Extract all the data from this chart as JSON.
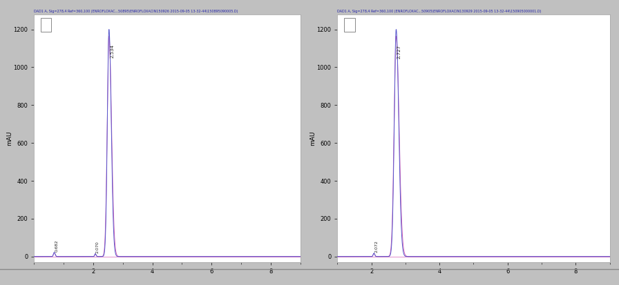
{
  "left_panel": {
    "header": "DAD1 A, Sig=278,4 Ref=360,100 (ENROFLOXAC...50895\\ENROFLOXACIN150926 2015-09-05 13-32-44\\150895090005.D)",
    "ylabel": "mAU",
    "xlim": [
      0,
      9
    ],
    "ylim": [
      -30,
      1280
    ],
    "yticks": [
      0,
      200,
      400,
      600,
      800,
      1000,
      1200
    ],
    "xticks": [
      2,
      4,
      6,
      8
    ],
    "main_peak_x": 2.534,
    "main_peak_y": 1200,
    "main_peak_label": "2.534",
    "small_peak1_x": 0.682,
    "small_peak1_y": 22,
    "small_peak1_label": "0.682",
    "small_peak2_x": 2.07,
    "small_peak2_y": 15,
    "small_peak2_label": "2.070",
    "line_color_blue": "#5555cc",
    "line_color_pink": "#cc44aa",
    "bg_color": "#ffffff",
    "border_color": "#aaaaaa",
    "outer_bg": "#c8c8c8"
  },
  "right_panel": {
    "header": "DAD1 A, Sig=278,4 Ref=360,100 (ENROFLOXAC...50905\\ENROFLOXACIN130929 2015-09-05 13-32-44\\150905000001.D)",
    "ylabel": "mAU",
    "xlim": [
      1,
      9
    ],
    "ylim": [
      -30,
      1280
    ],
    "yticks": [
      0,
      200,
      400,
      600,
      800,
      1000,
      1200
    ],
    "xticks": [
      2,
      4,
      6,
      8
    ],
    "main_peak_x": 2.727,
    "main_peak_y": 1200,
    "main_peak_label": "2.727",
    "small_peak1_x": 2.072,
    "small_peak1_y": 18,
    "small_peak1_label": "2.072",
    "line_color_blue": "#5555cc",
    "line_color_pink": "#cc44aa",
    "bg_color": "#ffffff",
    "border_color": "#aaaaaa",
    "outer_bg": "#c8c8c8"
  }
}
